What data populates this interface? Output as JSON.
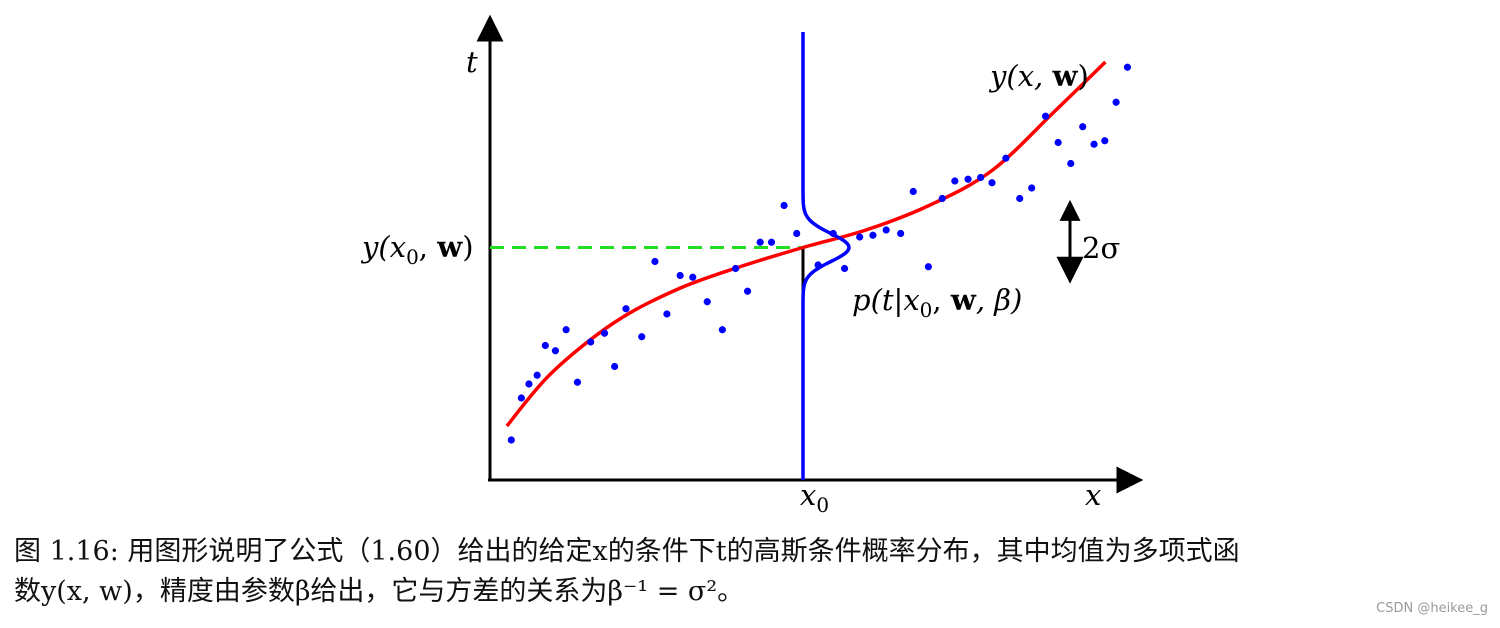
{
  "figure": {
    "labels": {
      "t_axis": "t",
      "x_axis": "x",
      "x0_tick_base": "x",
      "x0_tick_sub": "0",
      "y_x0_w": {
        "pre": "y(",
        "x": "x",
        "sub": "0",
        "comma": ", ",
        "w": "w",
        "post": ")"
      },
      "y_x_w": {
        "pre": "y(x, ",
        "w": "w",
        "post": ")"
      },
      "two_sigma": "2σ",
      "p_label": {
        "pre": "p(t|",
        "x": "x",
        "sub": "0",
        "comma": ", ",
        "w": "w",
        "post": ", β)"
      }
    },
    "colors": {
      "axis": "#000000",
      "curve": "#ff0000",
      "points": "#0000ff",
      "gaussian": "#0000ff",
      "dashed": "#22dd22"
    }
  },
  "chart_data": {
    "type": "scatter",
    "title": "",
    "xlabel": "x",
    "ylabel": "t",
    "xlim": [
      0,
      1
    ],
    "ylim": [
      -1.3,
      1.3
    ],
    "x0": 0.5,
    "y_at_x0": 0,
    "sigma": 0.08,
    "curve": {
      "name": "y(x, w)",
      "x": [
        0.03,
        0.1,
        0.2,
        0.3,
        0.4,
        0.5,
        0.6,
        0.7,
        0.8,
        0.9,
        0.98
      ],
      "y": [
        -1.02,
        -0.72,
        -0.43,
        -0.24,
        -0.11,
        0.0,
        0.1,
        0.24,
        0.44,
        0.78,
        1.06
      ]
    },
    "points": [
      {
        "x": 0.037,
        "y": -1.1
      },
      {
        "x": 0.053,
        "y": -0.86
      },
      {
        "x": 0.065,
        "y": -0.78
      },
      {
        "x": 0.078,
        "y": -0.73
      },
      {
        "x": 0.091,
        "y": -0.56
      },
      {
        "x": 0.107,
        "y": -0.59
      },
      {
        "x": 0.124,
        "y": -0.47
      },
      {
        "x": 0.142,
        "y": -0.77
      },
      {
        "x": 0.163,
        "y": -0.54
      },
      {
        "x": 0.185,
        "y": -0.49
      },
      {
        "x": 0.201,
        "y": -0.68
      },
      {
        "x": 0.219,
        "y": -0.35
      },
      {
        "x": 0.244,
        "y": -0.51
      },
      {
        "x": 0.265,
        "y": -0.08
      },
      {
        "x": 0.284,
        "y": -0.38
      },
      {
        "x": 0.305,
        "y": -0.16
      },
      {
        "x": 0.325,
        "y": -0.17
      },
      {
        "x": 0.348,
        "y": -0.31
      },
      {
        "x": 0.372,
        "y": -0.47
      },
      {
        "x": 0.393,
        "y": -0.12
      },
      {
        "x": 0.412,
        "y": -0.25
      },
      {
        "x": 0.432,
        "y": 0.03
      },
      {
        "x": 0.45,
        "y": 0.03
      },
      {
        "x": 0.47,
        "y": 0.24
      },
      {
        "x": 0.49,
        "y": 0.08
      },
      {
        "x": 0.524,
        "y": -0.1
      },
      {
        "x": 0.548,
        "y": 0.08
      },
      {
        "x": 0.566,
        "y": -0.12
      },
      {
        "x": 0.59,
        "y": 0.06
      },
      {
        "x": 0.611,
        "y": 0.07
      },
      {
        "x": 0.632,
        "y": 0.1
      },
      {
        "x": 0.655,
        "y": 0.08
      },
      {
        "x": 0.675,
        "y": 0.32
      },
      {
        "x": 0.699,
        "y": -0.11
      },
      {
        "x": 0.721,
        "y": 0.28
      },
      {
        "x": 0.741,
        "y": 0.38
      },
      {
        "x": 0.762,
        "y": 0.39
      },
      {
        "x": 0.782,
        "y": 0.4
      },
      {
        "x": 0.8,
        "y": 0.37
      },
      {
        "x": 0.822,
        "y": 0.51
      },
      {
        "x": 0.844,
        "y": 0.28
      },
      {
        "x": 0.863,
        "y": 0.34
      },
      {
        "x": 0.885,
        "y": 0.75
      },
      {
        "x": 0.905,
        "y": 0.6
      },
      {
        "x": 0.925,
        "y": 0.48
      },
      {
        "x": 0.944,
        "y": 0.69
      },
      {
        "x": 0.962,
        "y": 0.59
      },
      {
        "x": 0.979,
        "y": 0.61
      },
      {
        "x": 0.997,
        "y": 0.83
      },
      {
        "x": 1.015,
        "y": 1.03
      }
    ],
    "grid": false,
    "legend": "none"
  },
  "caption": {
    "line1": "图 1.16: 用图形说明了公式（1.60）给出的给定x的条件下t的高斯条件概率分布，其中均值为多项式函",
    "line2": "数y(x, w)，精度由参数β给出，它与方差的关系为β⁻¹ = σ²。"
  },
  "watermark": "CSDN @heikee_g"
}
